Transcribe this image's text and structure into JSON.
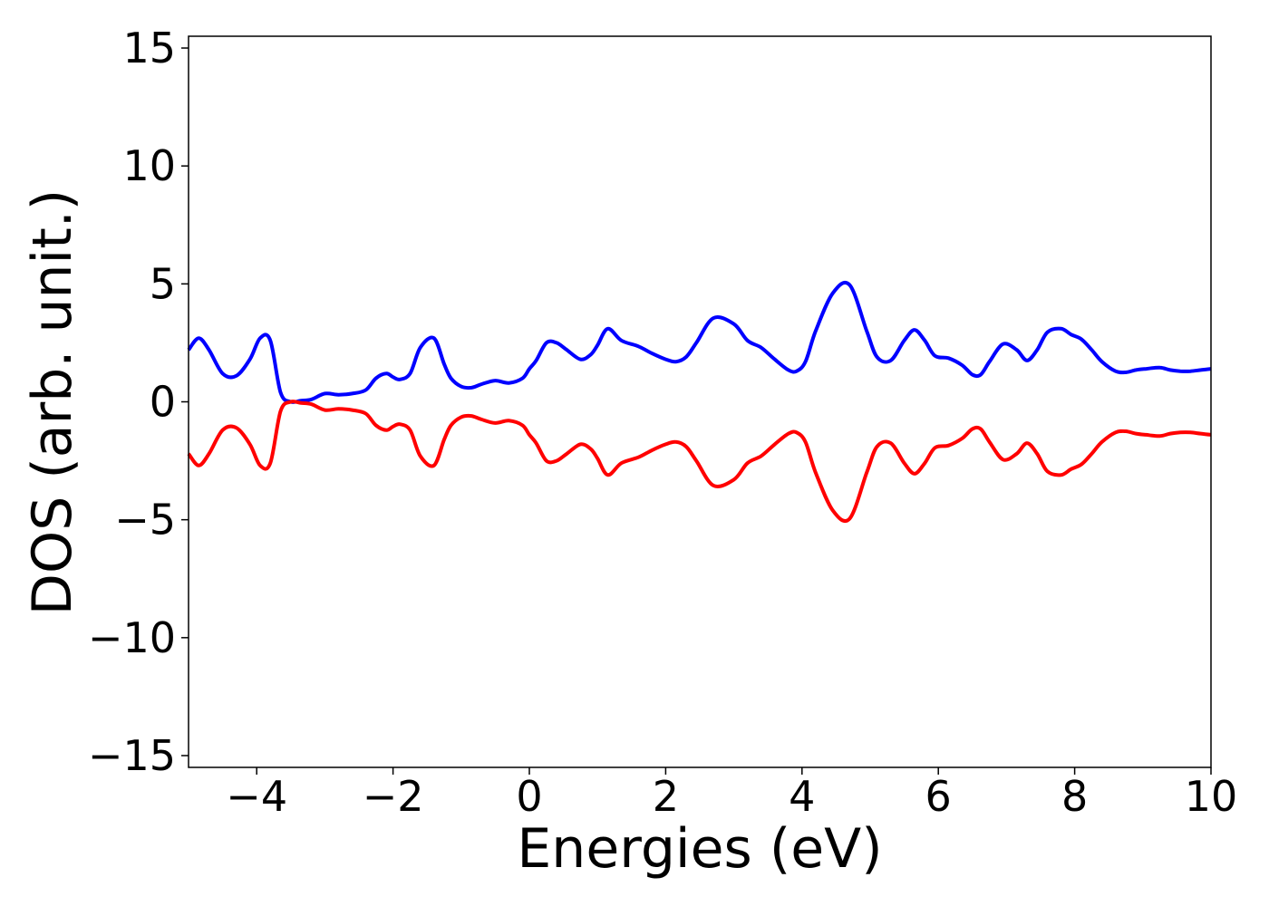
{
  "chart_data": {
    "type": "line",
    "xlabel": "Energies (eV)",
    "ylabel": "DOS (arb. unit.)",
    "xlim": [
      -5,
      10
    ],
    "ylim": [
      -15.5,
      15.5
    ],
    "xticks": [
      -4,
      -2,
      0,
      2,
      4,
      6,
      8,
      10
    ],
    "yticks": [
      -15,
      -10,
      -5,
      0,
      5,
      10,
      15
    ],
    "xtick_labels": [
      "−4",
      "−2",
      "0",
      "2",
      "4",
      "6",
      "8",
      "10"
    ],
    "ytick_labels": [
      "−15",
      "−10",
      "−5",
      "0",
      "5",
      "10",
      "15"
    ],
    "grid": false,
    "series": [
      {
        "color": "#0000ff",
        "x": [
          -5.0,
          -4.85,
          -4.7,
          -4.5,
          -4.3,
          -4.1,
          -3.95,
          -3.8,
          -3.65,
          -3.5,
          -3.35,
          -3.2,
          -3.0,
          -2.8,
          -2.6,
          -2.4,
          -2.25,
          -2.1,
          -2.0,
          -1.9,
          -1.75,
          -1.6,
          -1.4,
          -1.25,
          -1.15,
          -1.0,
          -0.85,
          -0.7,
          -0.5,
          -0.3,
          -0.1,
          0.0,
          0.1,
          0.25,
          0.4,
          0.55,
          0.75,
          0.9,
          1.0,
          1.15,
          1.35,
          1.6,
          1.8,
          2.0,
          2.15,
          2.3,
          2.45,
          2.7,
          3.0,
          3.2,
          3.4,
          3.6,
          3.8,
          3.92,
          4.05,
          4.2,
          4.45,
          4.7,
          4.95,
          5.1,
          5.3,
          5.5,
          5.65,
          5.8,
          5.95,
          6.15,
          6.35,
          6.5,
          6.62,
          6.75,
          6.95,
          7.15,
          7.3,
          7.45,
          7.6,
          7.8,
          7.95,
          8.1,
          8.25,
          8.4,
          8.6,
          8.75,
          8.9,
          9.05,
          9.25,
          9.4,
          9.55,
          9.7,
          9.85,
          10.0
        ],
        "y": [
          2.2,
          2.7,
          2.2,
          1.2,
          1.1,
          1.8,
          2.7,
          2.6,
          0.4,
          0.0,
          0.05,
          0.1,
          0.35,
          0.3,
          0.35,
          0.5,
          1.0,
          1.2,
          1.05,
          0.95,
          1.2,
          2.3,
          2.7,
          1.6,
          1.0,
          0.65,
          0.6,
          0.75,
          0.9,
          0.8,
          1.0,
          1.4,
          1.75,
          2.5,
          2.5,
          2.2,
          1.8,
          2.0,
          2.4,
          3.1,
          2.6,
          2.35,
          2.05,
          1.8,
          1.7,
          1.9,
          2.5,
          3.55,
          3.3,
          2.6,
          2.3,
          1.8,
          1.35,
          1.3,
          1.7,
          3.0,
          4.6,
          4.95,
          3.0,
          1.9,
          1.75,
          2.6,
          3.05,
          2.6,
          1.95,
          1.85,
          1.55,
          1.15,
          1.15,
          1.7,
          2.45,
          2.2,
          1.75,
          2.2,
          2.95,
          3.1,
          2.85,
          2.65,
          2.2,
          1.7,
          1.3,
          1.25,
          1.35,
          1.4,
          1.45,
          1.35,
          1.3,
          1.3,
          1.35,
          1.4
        ]
      },
      {
        "color": "#ff0000",
        "x": [
          -5.0,
          -4.85,
          -4.7,
          -4.5,
          -4.3,
          -4.1,
          -3.95,
          -3.8,
          -3.65,
          -3.5,
          -3.35,
          -3.2,
          -3.0,
          -2.8,
          -2.6,
          -2.4,
          -2.25,
          -2.1,
          -2.0,
          -1.9,
          -1.75,
          -1.6,
          -1.4,
          -1.25,
          -1.15,
          -1.0,
          -0.85,
          -0.7,
          -0.5,
          -0.3,
          -0.1,
          0.0,
          0.1,
          0.25,
          0.4,
          0.55,
          0.75,
          0.9,
          1.0,
          1.15,
          1.35,
          1.6,
          1.8,
          2.0,
          2.15,
          2.3,
          2.45,
          2.7,
          3.0,
          3.2,
          3.4,
          3.6,
          3.8,
          3.92,
          4.05,
          4.2,
          4.45,
          4.7,
          4.95,
          5.1,
          5.3,
          5.5,
          5.65,
          5.8,
          5.95,
          6.15,
          6.35,
          6.5,
          6.62,
          6.75,
          6.95,
          7.15,
          7.3,
          7.45,
          7.6,
          7.8,
          7.95,
          8.1,
          8.25,
          8.4,
          8.6,
          8.75,
          8.9,
          9.05,
          9.25,
          9.4,
          9.55,
          9.7,
          9.85,
          10.0
        ],
        "y": [
          -2.2,
          -2.7,
          -2.2,
          -1.2,
          -1.1,
          -1.8,
          -2.7,
          -2.6,
          -0.4,
          0.0,
          -0.05,
          -0.1,
          -0.35,
          -0.3,
          -0.35,
          -0.5,
          -1.0,
          -1.2,
          -1.05,
          -0.95,
          -1.2,
          -2.3,
          -2.7,
          -1.6,
          -1.0,
          -0.65,
          -0.6,
          -0.75,
          -0.9,
          -0.8,
          -1.0,
          -1.4,
          -1.75,
          -2.5,
          -2.5,
          -2.2,
          -1.8,
          -2.0,
          -2.4,
          -3.1,
          -2.6,
          -2.35,
          -2.05,
          -1.8,
          -1.7,
          -1.9,
          -2.5,
          -3.55,
          -3.3,
          -2.6,
          -2.3,
          -1.8,
          -1.35,
          -1.3,
          -1.7,
          -3.0,
          -4.6,
          -4.95,
          -3.0,
          -1.9,
          -1.75,
          -2.6,
          -3.05,
          -2.6,
          -1.95,
          -1.85,
          -1.55,
          -1.15,
          -1.15,
          -1.7,
          -2.45,
          -2.2,
          -1.75,
          -2.2,
          -2.95,
          -3.1,
          -2.85,
          -2.65,
          -2.2,
          -1.7,
          -1.3,
          -1.25,
          -1.35,
          -1.4,
          -1.45,
          -1.35,
          -1.3,
          -1.3,
          -1.35,
          -1.4
        ]
      }
    ]
  }
}
